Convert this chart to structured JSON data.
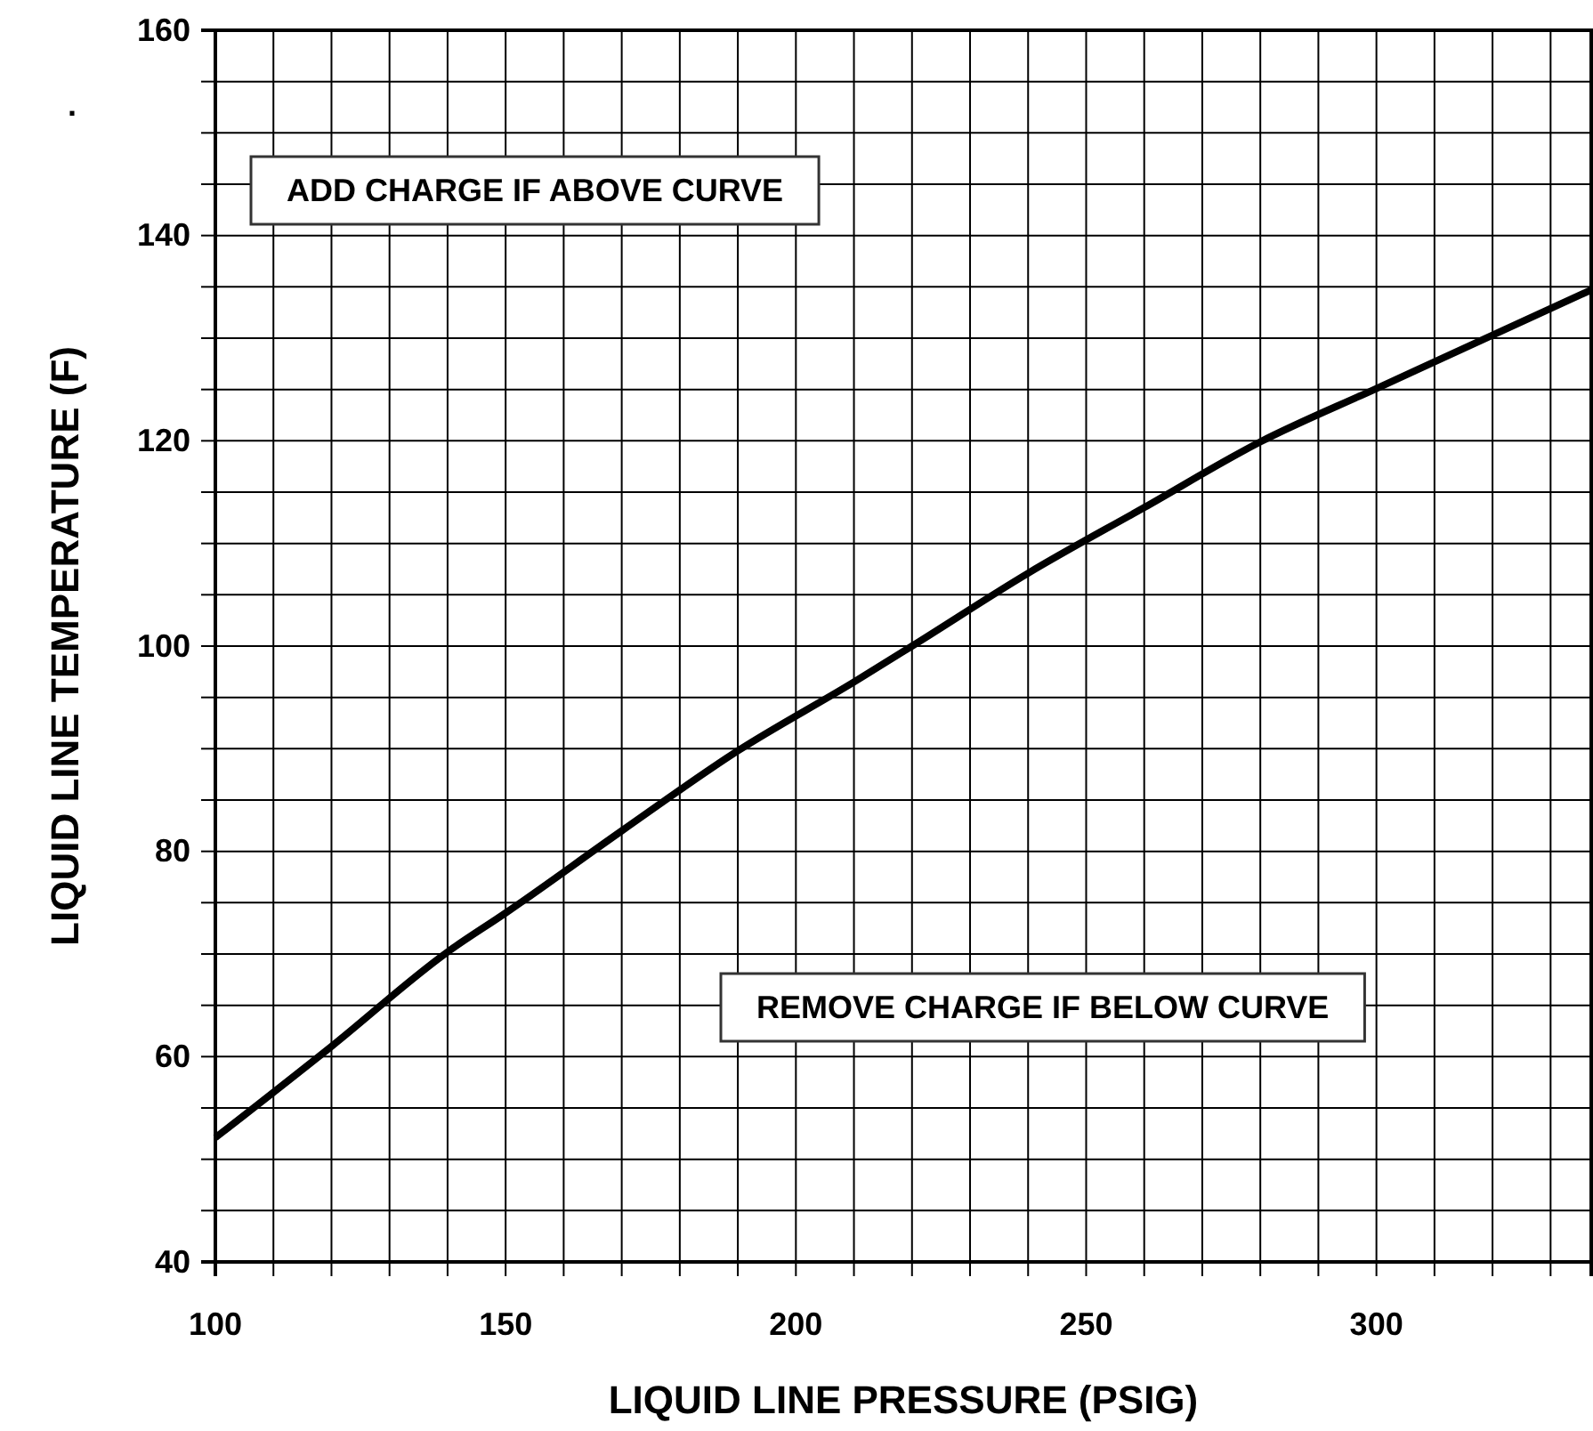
{
  "chart_data": {
    "type": "line",
    "xlabel": "LIQUID LINE PRESSURE (PSIG)",
    "ylabel": "LIQUID LINE TEMPERATURE (F)",
    "annotations": [
      "ADD CHARGE IF ABOVE CURVE",
      "REMOVE CHARGE IF BELOW CURVE",
      "."
    ],
    "xlim": [
      100,
      337
    ],
    "ylim": [
      40,
      160
    ],
    "xticks": [
      100,
      {
        "value": 110,
        "label": null
      },
      {
        "value": 120,
        "label": null
      },
      {
        "value": 130,
        "label": null
      },
      {
        "value": 140,
        "label": null
      },
      150,
      {
        "value": 160,
        "label": null
      },
      {
        "value": 170,
        "label": null
      },
      {
        "value": 180,
        "label": null
      },
      {
        "value": 190,
        "label": null
      },
      200,
      {
        "value": 210,
        "label": null
      },
      {
        "value": 220,
        "label": null
      },
      {
        "value": 230,
        "label": null
      },
      {
        "value": 240,
        "label": null
      },
      250,
      {
        "value": 260,
        "label": null
      },
      {
        "value": 270,
        "label": null
      },
      {
        "value": 280,
        "label": null
      },
      {
        "value": 290,
        "label": null
      },
      300,
      {
        "value": 310,
        "label": null
      },
      {
        "value": 320,
        "label": null
      },
      {
        "value": 330,
        "label": null
      }
    ],
    "yticks": [
      40,
      {
        "value": 45,
        "label": null
      },
      {
        "value": 50,
        "label": null
      },
      {
        "value": 55,
        "label": null
      },
      60,
      {
        "value": 65,
        "label": null
      },
      {
        "value": 70,
        "label": null
      },
      {
        "value": 75,
        "label": null
      },
      80,
      {
        "value": 85,
        "label": null
      },
      {
        "value": 90,
        "label": null
      },
      {
        "value": 95,
        "label": null
      },
      100,
      {
        "value": 105,
        "label": null
      },
      {
        "value": 110,
        "label": null
      },
      {
        "value": 115,
        "label": null
      },
      120,
      {
        "value": 125,
        "label": null
      },
      {
        "value": 130,
        "label": null
      },
      {
        "value": 135,
        "label": null
      },
      140,
      {
        "value": 145,
        "label": null
      },
      {
        "value": 150,
        "label": null
      },
      {
        "value": 155,
        "label": null
      },
      160
    ],
    "grid": true,
    "x": [
      100,
      120,
      140,
      150,
      170,
      190,
      210,
      220,
      240,
      260,
      280,
      300,
      320,
      337
    ],
    "series": [
      {
        "color": "#000000",
        "values": [
          52.1,
          61.0,
          70.2,
          74.0,
          82.0,
          89.8,
          96.5,
          100.0,
          107.1,
          113.5,
          119.9,
          125.1,
          130.3,
          134.7
        ]
      }
    ]
  }
}
